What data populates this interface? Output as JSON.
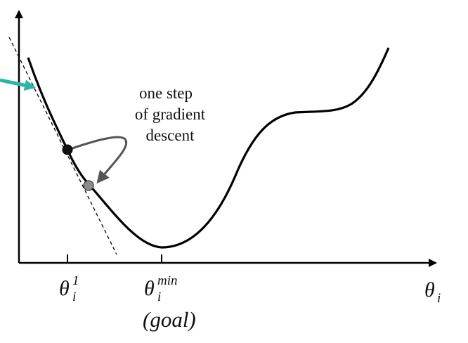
{
  "annotation": {
    "line1": "one step",
    "line2": "of gradient",
    "line3": "descent"
  },
  "ticks": {
    "theta1": {
      "base": "θ",
      "sup": "1",
      "sub": "i"
    },
    "thetamin": {
      "base": "θ",
      "sup": "min",
      "sub": "i"
    }
  },
  "goal_label": "(goal)",
  "x_axis_label": {
    "base": "θ",
    "sub": "i"
  },
  "colors": {
    "curve": "#000000",
    "teal_arrow": "#2bb5a9",
    "step_arrow": "#555555",
    "start_point": "#111111",
    "next_point": "#8c8c8c"
  }
}
